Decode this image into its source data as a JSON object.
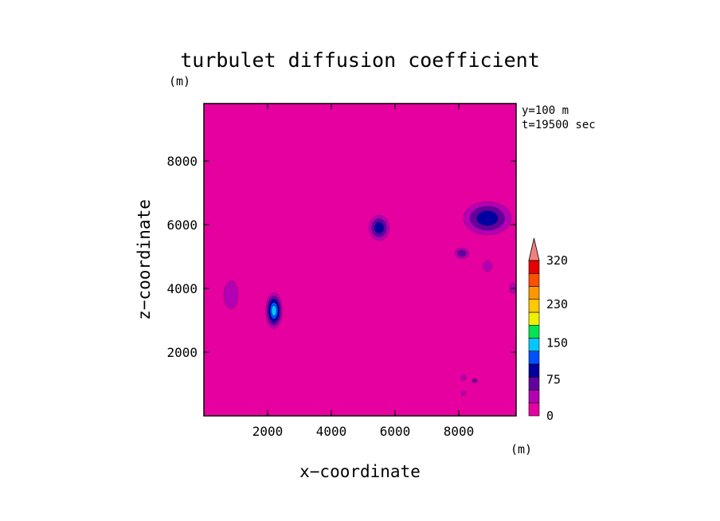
{
  "chart_data": {
    "type": "heatmap",
    "title": "turbulet diffusion coefficient",
    "xlabel": "x−coordinate",
    "ylabel": "z−coordinate",
    "x_unit": "(m)",
    "y_unit": "(m)",
    "annotations": [
      "y=100 m",
      "t=19500 sec"
    ],
    "xlim": [
      0,
      9800
    ],
    "ylim": [
      0,
      9800
    ],
    "x_ticks": [
      2000,
      4000,
      6000,
      8000
    ],
    "y_ticks": [
      2000,
      4000,
      6000,
      8000
    ],
    "colorbar": {
      "levels": [
        0,
        25,
        50,
        75,
        100,
        125,
        150,
        175,
        200,
        230,
        260,
        290,
        320
      ],
      "labels": [
        "0",
        "75",
        "150",
        "230",
        "320"
      ],
      "label_values": [
        0,
        75,
        150,
        230,
        320
      ],
      "colors": [
        "#e600a0",
        "#b400b4",
        "#6400a0",
        "#0000a0",
        "#0050ff",
        "#00c8ff",
        "#00e650",
        "#f0f000",
        "#ffc800",
        "#ff9600",
        "#ff5000",
        "#e60000"
      ],
      "extend_color": "#f08080",
      "extend": "max"
    },
    "background_value": 0,
    "background_color": "#e600a0",
    "features": [
      {
        "x": 2200,
        "z": 3300,
        "rx": 260,
        "rz": 560,
        "level": 5
      },
      {
        "x": 850,
        "z": 3800,
        "rx": 220,
        "rz": 440,
        "level": 1
      },
      {
        "x": 5500,
        "z": 5900,
        "rx": 320,
        "rz": 400,
        "level": 3
      },
      {
        "x": 8900,
        "z": 6200,
        "rx": 750,
        "rz": 520,
        "level": 3
      },
      {
        "x": 8100,
        "z": 5100,
        "rx": 220,
        "rz": 170,
        "level": 2
      },
      {
        "x": 8900,
        "z": 4700,
        "rx": 140,
        "rz": 170,
        "level": 1
      },
      {
        "x": 8500,
        "z": 1100,
        "rx": 90,
        "rz": 70,
        "level": 2
      },
      {
        "x": 8150,
        "z": 1200,
        "rx": 80,
        "rz": 90,
        "level": 1
      },
      {
        "x": 8150,
        "z": 700,
        "rx": 70,
        "rz": 70,
        "level": 1
      },
      {
        "x": 9700,
        "z": 4000,
        "rx": 100,
        "rz": 160,
        "level": 1
      }
    ]
  }
}
